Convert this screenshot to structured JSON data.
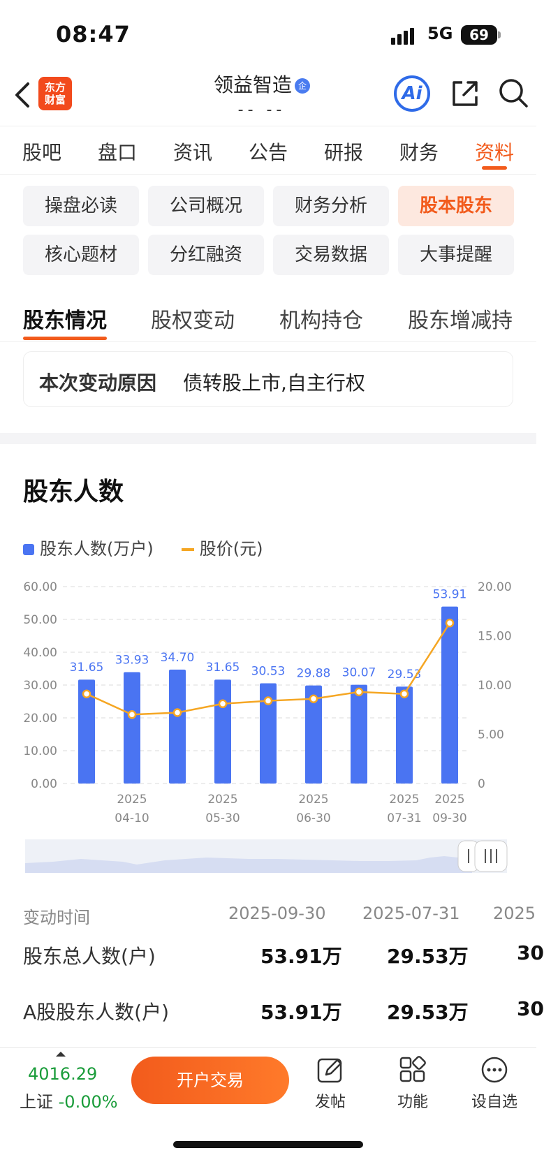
{
  "status_bar": {
    "time": "08:47",
    "network": "5G",
    "battery": "69"
  },
  "header": {
    "logo_text": "东方\n财富",
    "logo_line1": "东方",
    "logo_line2": "财富",
    "title": "领益智造",
    "title_badge": "企",
    "subtitle": "-- --",
    "ai_label": "Ai"
  },
  "main_tabs": [
    "股吧",
    "盘口",
    "资讯",
    "公告",
    "研报",
    "财务",
    "资料"
  ],
  "chips": [
    "操盘必读",
    "公司概况",
    "财务分析",
    "股本股东",
    "核心题材",
    "分红融资",
    "交易数据",
    "大事提醒"
  ],
  "sub_tabs": [
    "股东情况",
    "股权变动",
    "机构持仓",
    "股东增减持"
  ],
  "reason": {
    "label": "本次变动原因",
    "value": "债转股上市,自主行权"
  },
  "section_title": "股东人数",
  "legend": {
    "bars": "股东人数(万户)",
    "line": "股价(元)"
  },
  "colors": {
    "accent": "#f25b1c",
    "bar": "#4a74f2",
    "line": "#f5a623",
    "down": "#1a9c3a"
  },
  "chart_data": {
    "type": "bar",
    "series": [
      {
        "name": "股东人数(万户)",
        "values": [
          31.65,
          33.93,
          34.7,
          31.65,
          30.53,
          29.88,
          30.07,
          29.53,
          53.91
        ]
      },
      {
        "name": "股价(元)",
        "values": [
          9.1,
          7.0,
          7.2,
          8.1,
          8.4,
          8.6,
          9.3,
          9.1,
          16.3
        ]
      }
    ],
    "bar_labels": [
      "31.65",
      "33.93",
      "34.70",
      "31.65",
      "30.53",
      "29.88",
      "30.07",
      "29.53",
      "53.91"
    ],
    "x_ticks": [
      {
        "index": 1,
        "year": "2025",
        "date": "04-10"
      },
      {
        "index": 3,
        "year": "2025",
        "date": "05-30"
      },
      {
        "index": 5,
        "year": "2025",
        "date": "06-30"
      },
      {
        "index": 7,
        "year": "2025",
        "date": "07-31"
      },
      {
        "index": 8,
        "year": "2025",
        "date": "09-30"
      }
    ],
    "y_left_ticks": [
      "60.00",
      "50.00",
      "40.00",
      "30.00",
      "20.00",
      "10.00",
      "0.00"
    ],
    "y_right_ticks": [
      "20.00",
      "15.00",
      "10.00",
      "5.00",
      "0"
    ],
    "ylim_left": [
      0,
      60
    ],
    "ylim_right": [
      0,
      20
    ]
  },
  "table": {
    "header": {
      "label": "变动时间",
      "values": [
        "2025-09-30",
        "2025-07-31",
        "2025"
      ]
    },
    "rows": [
      {
        "label": "股东总人数(户)",
        "values": [
          "53.91万",
          "29.53万",
          "30"
        ]
      },
      {
        "label": "A股股东人数(户)",
        "values": [
          "53.91万",
          "29.53万",
          "30"
        ]
      }
    ]
  },
  "bottom_bar": {
    "index_value": "4016.29",
    "index_name": "上证",
    "index_change": "-0.00%",
    "open_button": "开户交易",
    "post": "发帖",
    "function": "功能",
    "watchlist": "设自选"
  }
}
